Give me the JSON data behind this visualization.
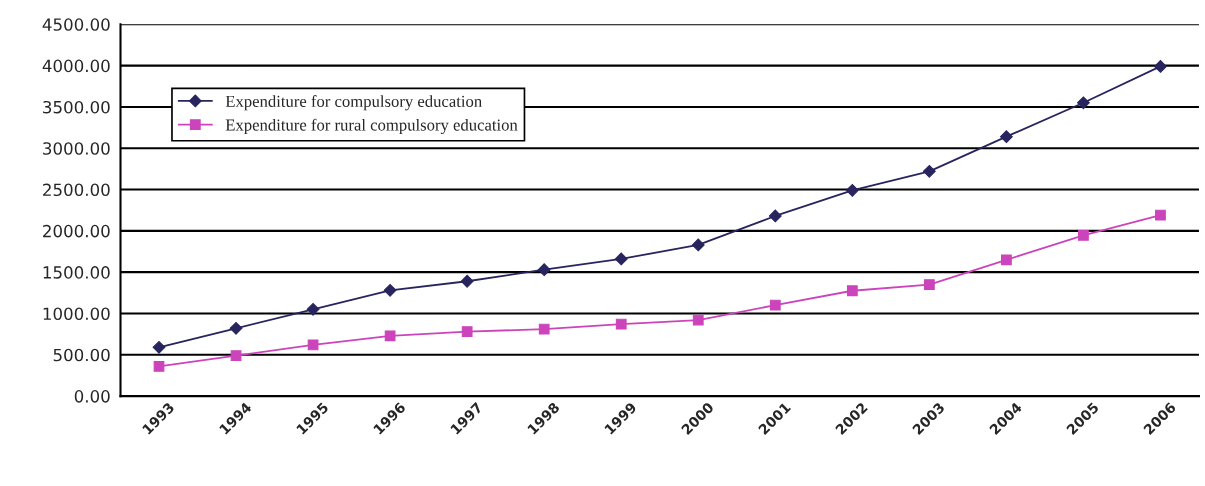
{
  "chart_data": {
    "type": "line",
    "categories": [
      "1993",
      "1994",
      "1995",
      "1996",
      "1997",
      "1998",
      "1999",
      "2000",
      "2001",
      "2002",
      "2003",
      "2004",
      "2005",
      "2006"
    ],
    "series": [
      {
        "name": "Expenditure for compulsory education",
        "color": "#28245e",
        "marker": "diamond",
        "values": [
          590,
          820,
          1050,
          1280,
          1390,
          1530,
          1660,
          1830,
          2180,
          2490,
          2720,
          3140,
          3550,
          3990
        ]
      },
      {
        "name": "Expenditure for rural compulsory education",
        "color": "#cc44bb",
        "marker": "square",
        "values": [
          360,
          490,
          620,
          730,
          780,
          810,
          870,
          920,
          1100,
          1275,
          1350,
          1650,
          1945,
          2190
        ]
      }
    ],
    "ylim": [
      0,
      4500
    ],
    "yticks": [
      {
        "value": 0,
        "label": "0.00"
      },
      {
        "value": 500,
        "label": "500.00"
      },
      {
        "value": 1000,
        "label": "1000.00"
      },
      {
        "value": 1500,
        "label": "1500.00"
      },
      {
        "value": 2000,
        "label": "2000.00"
      },
      {
        "value": 2500,
        "label": "2500.00"
      },
      {
        "value": 3000,
        "label": "3000.00"
      },
      {
        "value": 3500,
        "label": "3500.00"
      },
      {
        "value": 4000,
        "label": "4000.00"
      },
      {
        "value": 4500,
        "label": "4500.00"
      }
    ],
    "grid": "y",
    "legend": "top left",
    "line_style": "solid"
  }
}
